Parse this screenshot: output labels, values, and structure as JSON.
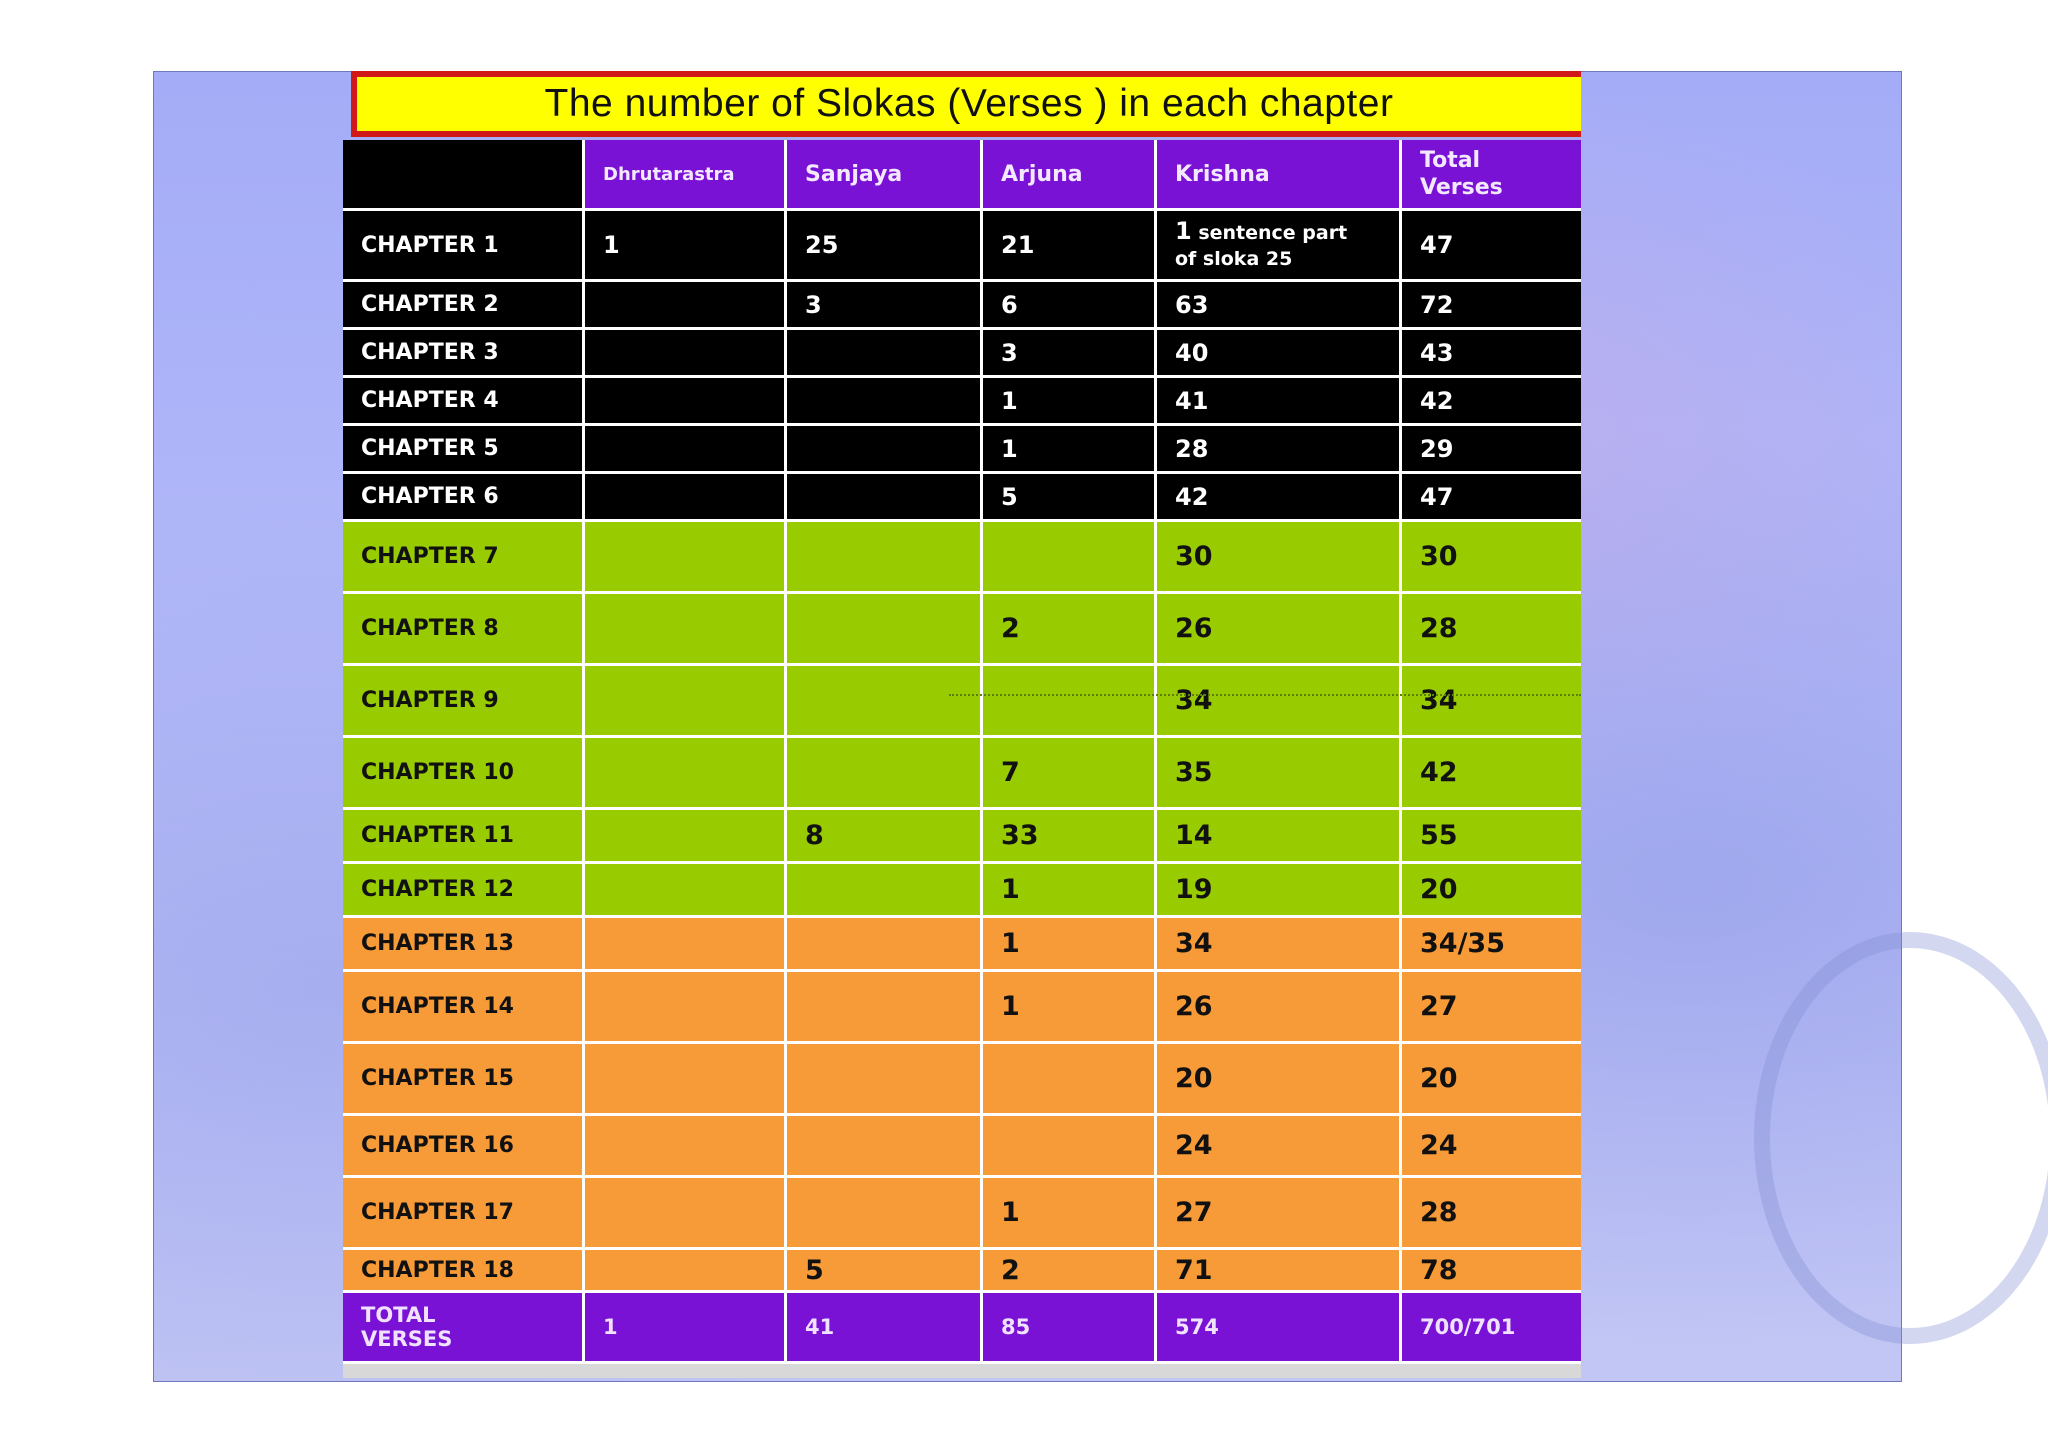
{
  "slide": {
    "title": "The number of Slokas (Verses ) in each chapter",
    "colors": {
      "title_background": "#ffff00",
      "title_border": "#d01818",
      "header_purple": "#7a12d6",
      "black_rows": "#000000",
      "green_rows": "#99cc00",
      "orange_rows": "#f79a38"
    }
  },
  "table": {
    "headers": [
      "",
      "Dhrutarastra",
      "Sanjaya",
      "Arjuna",
      "Krishna",
      "Total Verses"
    ],
    "header_total_lines": [
      "Total",
      "Verses"
    ],
    "chapter1": {
      "label": "CHAPTER 1",
      "dhrutarastra": "1",
      "sanjaya": "25",
      "arjuna": "21",
      "krishna_num": "1",
      "krishna_note_a": "sentence part",
      "krishna_note_b": "of sloka 25",
      "total": "47"
    },
    "rows": [
      {
        "label": "CHAPTER 2",
        "d": "",
        "s": "3",
        "a": "6",
        "k": "63",
        "t": "72"
      },
      {
        "label": "CHAPTER 3",
        "d": "",
        "s": "",
        "a": "3",
        "k": "40",
        "t": "43"
      },
      {
        "label": "CHAPTER 4",
        "d": "",
        "s": "",
        "a": "1",
        "k": "41",
        "t": "42"
      },
      {
        "label": "CHAPTER 5",
        "d": "",
        "s": "",
        "a": "1",
        "k": "28",
        "t": "29"
      },
      {
        "label": "CHAPTER 6",
        "d": "",
        "s": "",
        "a": "5",
        "k": "42",
        "t": "47"
      },
      {
        "label": "CHAPTER 7",
        "d": "",
        "s": "",
        "a": "",
        "k": "30",
        "t": "30"
      },
      {
        "label": "CHAPTER 8",
        "d": "",
        "s": "",
        "a": "2",
        "k": "26",
        "t": "28"
      },
      {
        "label": "CHAPTER 9",
        "d": "",
        "s": "",
        "a": "",
        "k": "34",
        "t": "34"
      },
      {
        "label": "CHAPTER 10",
        "d": "",
        "s": "",
        "a": "7",
        "k": "35",
        "t": "42"
      },
      {
        "label": "CHAPTER 11",
        "d": "",
        "s": "8",
        "a": "33",
        "k": "14",
        "t": "55"
      },
      {
        "label": "CHAPTER 12",
        "d": "",
        "s": "",
        "a": "1",
        "k": "19",
        "t": "20"
      },
      {
        "label": "CHAPTER 13",
        "d": "",
        "s": "",
        "a": "1",
        "k": "34",
        "t": "34/35"
      },
      {
        "label": "CHAPTER 14",
        "d": "",
        "s": "",
        "a": "1",
        "k": "26",
        "t": "27"
      },
      {
        "label": "CHAPTER 15",
        "d": "",
        "s": "",
        "a": "",
        "k": "20",
        "t": "20"
      },
      {
        "label": "CHAPTER 16",
        "d": "",
        "s": "",
        "a": "",
        "k": "24",
        "t": "24"
      },
      {
        "label": "CHAPTER 17",
        "d": "",
        "s": "",
        "a": "1",
        "k": "27",
        "t": "28"
      },
      {
        "label": "CHAPTER 18",
        "d": "",
        "s": "5",
        "a": "2",
        "k": "71",
        "t": "78"
      }
    ],
    "total_row": {
      "label_a": "TOTAL",
      "label_b": "VERSES",
      "d": "1",
      "s": "41",
      "a": "85",
      "k": "574",
      "t": "700/701"
    }
  }
}
